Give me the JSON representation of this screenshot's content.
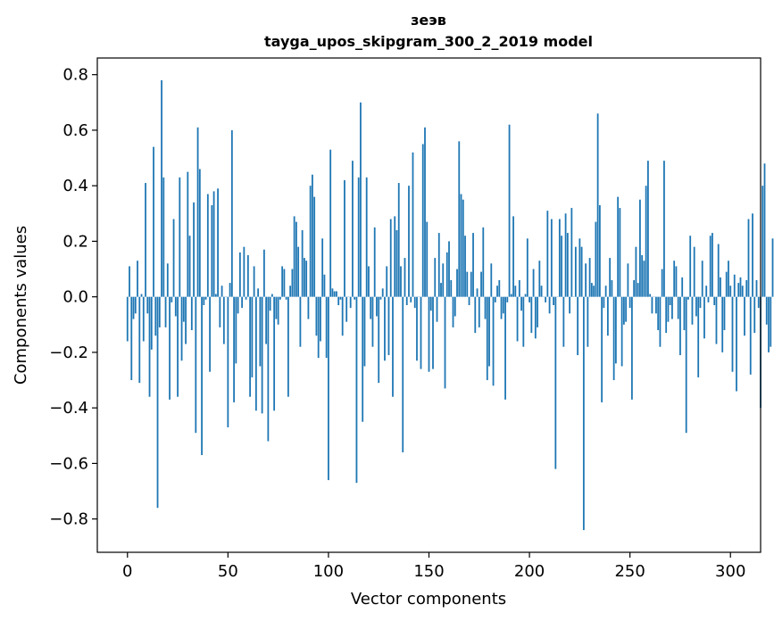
{
  "chart_data": {
    "type": "bar",
    "title": "зеэв",
    "subtitle": "tayga_upos_skipgram_300_2_2019 model",
    "xlabel": "Vector components",
    "ylabel": "Components values",
    "xlim": [
      -15,
      315
    ],
    "ylim": [
      -0.92,
      0.86
    ],
    "xticks": [
      0,
      50,
      100,
      150,
      200,
      250,
      300
    ],
    "xtick_labels": [
      "0",
      "50",
      "100",
      "150",
      "200",
      "250",
      "300"
    ],
    "yticks": [
      -0.8,
      -0.6,
      -0.4,
      -0.2,
      0.0,
      0.2,
      0.4,
      0.6,
      0.8
    ],
    "ytick_labels": [
      "−0.8",
      "−0.6",
      "−0.4",
      "−0.2",
      "0.0",
      "0.2",
      "0.4",
      "0.6",
      "0.8"
    ],
    "grid": false,
    "bar_color": "#1f77b4",
    "x_start": 0,
    "values": [
      -0.16,
      0.11,
      -0.3,
      -0.08,
      -0.06,
      0.13,
      -0.31,
      0.01,
      -0.16,
      0.41,
      -0.06,
      -0.36,
      -0.19,
      0.54,
      -0.14,
      -0.76,
      -0.11,
      0.78,
      0.43,
      -0.11,
      0.12,
      -0.37,
      -0.02,
      0.28,
      -0.07,
      -0.36,
      0.43,
      -0.23,
      -0.09,
      -0.17,
      0.45,
      0.22,
      -0.12,
      0.34,
      -0.49,
      0.61,
      0.46,
      -0.57,
      -0.03,
      -0.01,
      0.37,
      -0.27,
      0.33,
      0.38,
      0.01,
      0.39,
      -0.11,
      0.04,
      -0.17,
      0.0,
      -0.47,
      0.05,
      0.6,
      -0.38,
      -0.24,
      -0.06,
      0.16,
      -0.04,
      0.18,
      -0.01,
      0.15,
      -0.36,
      -0.29,
      0.11,
      -0.41,
      0.03,
      -0.25,
      -0.42,
      0.17,
      -0.17,
      -0.52,
      -0.05,
      0.01,
      -0.41,
      -0.08,
      -0.1,
      -0.01,
      0.11,
      0.1,
      -0.01,
      -0.36,
      0.04,
      0.1,
      0.29,
      0.27,
      0.18,
      -0.18,
      0.24,
      0.14,
      0.13,
      -0.08,
      0.4,
      0.44,
      0.36,
      -0.14,
      -0.22,
      -0.16,
      0.21,
      0.08,
      -0.22,
      -0.66,
      0.53,
      0.03,
      0.02,
      0.02,
      -0.03,
      -0.01,
      -0.14,
      0.42,
      -0.09,
      0.0,
      -0.04,
      0.49,
      -0.01,
      -0.67,
      0.43,
      0.7,
      -0.45,
      -0.25,
      0.43,
      0.11,
      -0.08,
      -0.18,
      0.25,
      -0.07,
      -0.31,
      -0.01,
      0.03,
      -0.23,
      0.11,
      -0.21,
      0.28,
      -0.36,
      0.29,
      0.24,
      0.41,
      0.11,
      -0.56,
      0.14,
      -0.03,
      0.4,
      -0.02,
      0.52,
      -0.04,
      -0.23,
      0.0,
      -0.26,
      0.55,
      0.61,
      0.27,
      -0.27,
      -0.05,
      -0.26,
      0.14,
      -0.09,
      0.23,
      0.05,
      0.12,
      -0.33,
      0.16,
      0.2,
      0.06,
      -0.11,
      -0.07,
      0.1,
      0.56,
      0.37,
      0.35,
      0.22,
      0.09,
      -0.03,
      0.09,
      0.23,
      -0.13,
      0.03,
      -0.11,
      0.09,
      0.25,
      -0.08,
      -0.3,
      -0.25,
      0.12,
      -0.32,
      -0.02,
      0.04,
      0.06,
      -0.08,
      -0.06,
      -0.37,
      -0.02,
      0.62,
      0.01,
      0.29,
      0.04,
      -0.16,
      0.06,
      -0.05,
      -0.18,
      0.01,
      0.21,
      -0.02,
      -0.13,
      0.1,
      -0.15,
      -0.11,
      0.13,
      0.04,
      0.0,
      -0.02,
      0.31,
      -0.06,
      0.28,
      -0.03,
      -0.62,
      0.0,
      0.28,
      0.22,
      -0.18,
      0.3,
      0.23,
      -0.06,
      0.32,
      0.0,
      0.18,
      -0.21,
      0.21,
      0.18,
      -0.84,
      0.12,
      -0.18,
      0.14,
      0.05,
      0.04,
      0.27,
      0.66,
      0.33,
      -0.38,
      -0.04,
      0.04,
      -0.14,
      0.14,
      0.06,
      -0.3,
      -0.24,
      0.36,
      0.32,
      -0.25,
      -0.1,
      -0.09,
      0.12,
      -0.04,
      -0.37,
      0.06,
      0.18,
      0.05,
      0.35,
      0.15,
      0.13,
      0.4,
      0.49,
      0.01,
      -0.06,
      0.0,
      -0.06,
      -0.12,
      -0.18,
      0.1,
      0.49,
      -0.13,
      -0.09,
      -0.03,
      -0.08,
      0.13,
      0.11,
      -0.08,
      -0.21,
      0.07,
      -0.12,
      -0.49,
      -0.01,
      0.22,
      -0.1,
      0.18,
      -0.07,
      -0.29,
      -0.04,
      0.13,
      -0.15,
      0.04,
      -0.02,
      0.22,
      0.23,
      -0.03,
      -0.17,
      0.19,
      0.07,
      -0.2,
      -0.12,
      0.09,
      0.13,
      0.04,
      -0.27,
      0.08,
      -0.34,
      0.05,
      0.07,
      0.04,
      -0.14,
      0.06,
      0.28,
      -0.28,
      0.3,
      -0.13,
      0.06,
      -0.04,
      -0.4,
      0.4,
      0.48,
      -0.1,
      -0.2,
      -0.18,
      0.21
    ]
  }
}
